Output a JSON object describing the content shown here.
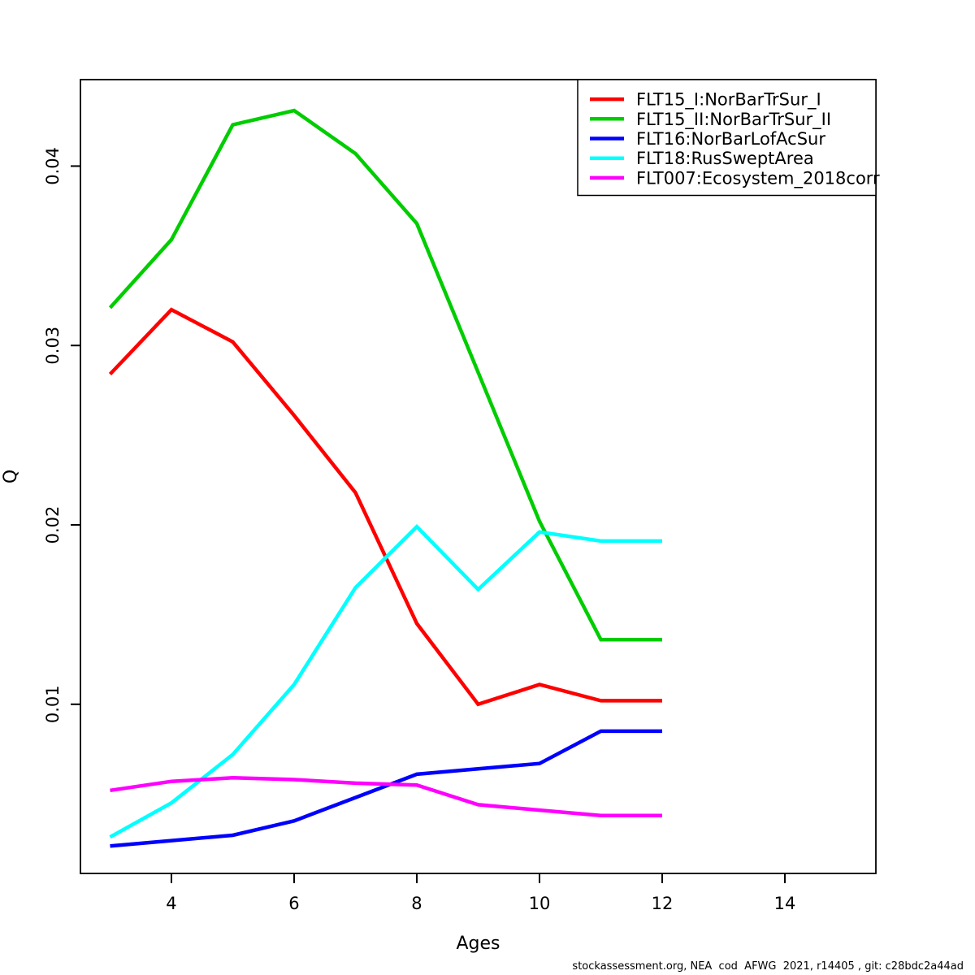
{
  "chart_data": {
    "type": "line",
    "title": "",
    "xlabel": "Ages",
    "ylabel": "Q",
    "x": [
      3,
      4,
      5,
      6,
      7,
      8,
      9,
      10,
      11,
      12
    ],
    "series": [
      {
        "name": "FLT15_I:NorBarTrSur_I",
        "color": "#FF0000",
        "values": [
          0.0284,
          0.032,
          0.0302,
          0.0261,
          0.0218,
          0.0145,
          0.01,
          0.0111,
          0.0102,
          0.0102
        ]
      },
      {
        "name": "FLT15_II:NorBarTrSur_II",
        "color": "#00CD00",
        "values": [
          0.0321,
          0.0359,
          0.0423,
          0.0431,
          0.0407,
          0.0368,
          0.0285,
          0.0202,
          0.0136,
          0.0136
        ]
      },
      {
        "name": "FLT16:NorBarLofAcSur",
        "color": "#0000FF",
        "values": [
          0.0021,
          0.0024,
          0.0027,
          0.0035,
          0.0048,
          0.0061,
          0.0064,
          0.0067,
          0.0085,
          0.0085
        ]
      },
      {
        "name": "FLT18:RusSweptArea",
        "color": "#00FFFF",
        "values": [
          0.0026,
          0.0045,
          0.0072,
          0.0111,
          0.0165,
          0.0199,
          0.0164,
          0.0196,
          0.0191,
          0.0191
        ]
      },
      {
        "name": "FLT007:Ecosystem_2018corr",
        "color": "#FF00FF",
        "values": [
          0.0052,
          0.0057,
          0.0059,
          0.0058,
          0.0056,
          0.0055,
          0.0044,
          0.0041,
          0.0038,
          0.0038
        ]
      }
    ],
    "x_ticks": [
      4,
      6,
      8,
      10,
      12,
      14
    ],
    "y_ticks": [
      "0.01",
      "0.02",
      "0.03",
      "0.04"
    ],
    "x_domain": [
      2.517,
      15.483
    ],
    "y_domain": [
      0.00057,
      0.04482
    ],
    "grid": false,
    "legend_position": "topright",
    "axis_color": "#000000"
  },
  "footer": {
    "credit": "stockassessment.org, NEA  cod  AFWG  2021, r14405 , git: c28bdc2a44ad"
  }
}
